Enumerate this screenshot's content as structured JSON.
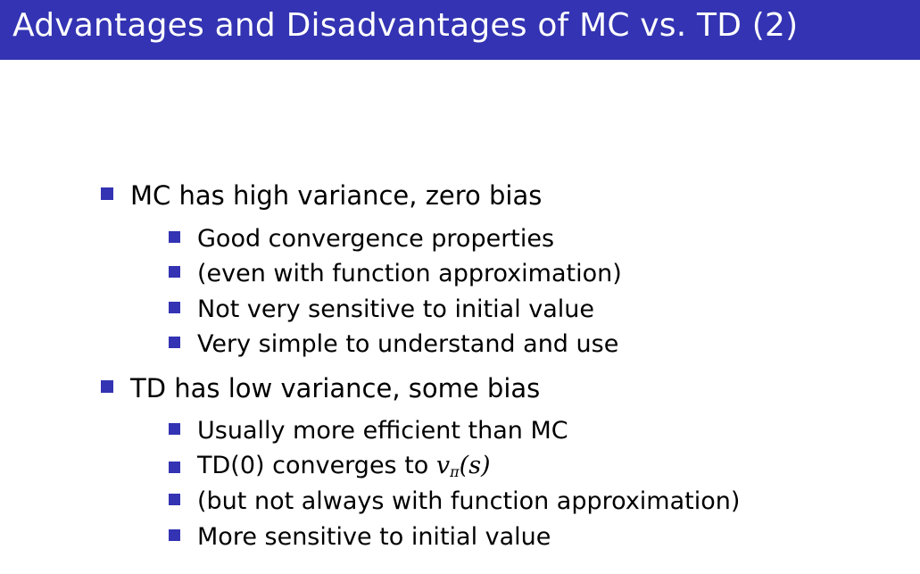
{
  "slide": {
    "title": "Advantages and Disadvantages of MC vs. TD (2)",
    "accent_color": "#3333b3"
  },
  "bullets": {
    "mc": {
      "heading": "MC has high variance, zero bias",
      "points": [
        "Good convergence properties",
        "(even with function approximation)",
        "Not very sensitive to initial value",
        "Very simple to understand and use"
      ]
    },
    "td": {
      "heading": "TD has low variance, some bias",
      "points": [
        "Usually more efficient than MC",
        "TD(0) converges to ",
        "(but not always with function approximation)",
        "More sensitive to initial value"
      ],
      "math_v": "v",
      "math_sub": "π",
      "math_arg": "(s)"
    }
  }
}
